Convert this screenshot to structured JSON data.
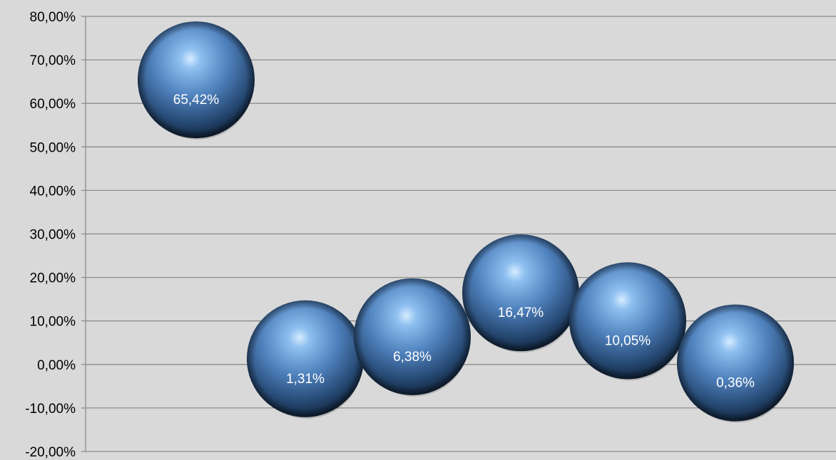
{
  "chart_data": {
    "type": "scatter",
    "style": "bubble-3d",
    "title": "",
    "xlabel": "",
    "ylabel": "",
    "ylim": [
      -20,
      80
    ],
    "y_ticks": [
      "-20,00%",
      "-10,00%",
      "0,00%",
      "10,00%",
      "20,00%",
      "30,00%",
      "40,00%",
      "50,00%",
      "60,00%",
      "70,00%",
      "80,00%"
    ],
    "grid": true,
    "legend": "none",
    "series": [
      {
        "points": [
          {
            "x": 1,
            "y": 65.42,
            "label": "65,42%"
          },
          {
            "x": 2,
            "y": 1.31,
            "label": "1,31%"
          },
          {
            "x": 3,
            "y": 6.38,
            "label": "6,38%"
          },
          {
            "x": 4,
            "y": 16.47,
            "label": "16,47%"
          },
          {
            "x": 5,
            "y": 10.05,
            "label": "10,05%"
          },
          {
            "x": 6,
            "y": 0.36,
            "label": "0,36%"
          }
        ]
      }
    ],
    "colors": {
      "background": "#d9d9d9",
      "gridline": "#8c8c8c",
      "bubble": "#4f81bd",
      "bubble_highlight": "#c7e3ff",
      "bubble_shadow": "#0c1b2e",
      "label": "#ffffff"
    }
  }
}
